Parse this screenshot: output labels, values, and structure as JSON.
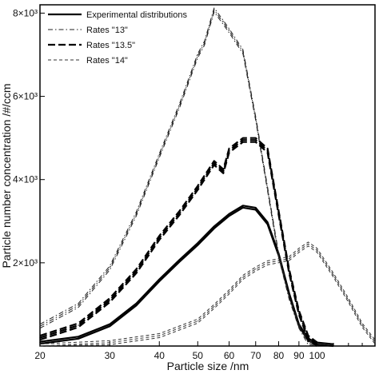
{
  "chart_data": {
    "type": "line",
    "title": "",
    "xlabel": "Particle size /nm",
    "ylabel": "Particle number concentration /#/ccm",
    "x_scale": "log",
    "xlim": [
      20,
      140
    ],
    "ylim": [
      0,
      8200
    ],
    "x_ticks": [
      {
        "value": 20,
        "label": "20"
      },
      {
        "value": 30,
        "label": "30"
      },
      {
        "value": 40,
        "label": "40"
      },
      {
        "value": 50,
        "label": "50"
      },
      {
        "value": 60,
        "label": "60"
      },
      {
        "value": 70,
        "label": "70"
      },
      {
        "value": 80,
        "label": "80"
      },
      {
        "value": 90,
        "label": "90"
      },
      {
        "value": 100,
        "label": "100"
      }
    ],
    "y_ticks": [
      {
        "value": 2000,
        "label": "2×10³"
      },
      {
        "value": 4000,
        "label": "4×10³"
      },
      {
        "value": 6000,
        "label": "6×10³"
      },
      {
        "value": 8000,
        "label": "8×10³"
      }
    ],
    "grid": false,
    "legend_position": "top-left",
    "series": [
      {
        "name": "Experimental distributions",
        "style": "solid",
        "color": "#000000",
        "width": 2.2,
        "x": [
          20,
          25,
          30,
          35,
          40,
          45,
          50,
          55,
          60,
          65,
          70,
          75,
          80,
          85,
          90,
          95,
          100,
          110
        ],
        "y": [
          80,
          200,
          500,
          1000,
          1580,
          2050,
          2450,
          2850,
          3150,
          3350,
          3300,
          2950,
          2200,
          1250,
          500,
          150,
          60,
          20
        ]
      },
      {
        "name": "Rates \"13\"",
        "style": "dashdot",
        "color": "#222222",
        "width": 1.0,
        "x": [
          20,
          25,
          30,
          35,
          40,
          45,
          50,
          52,
          55,
          58,
          60,
          65,
          70,
          75,
          80,
          85,
          90,
          95,
          100
        ],
        "y": [
          500,
          1000,
          1900,
          3200,
          4600,
          5800,
          7000,
          7300,
          8100,
          7800,
          7600,
          7100,
          5500,
          3800,
          2200,
          1200,
          500,
          100,
          20
        ]
      },
      {
        "name": "Rates \"13.5\"",
        "style": "dashed",
        "color": "#000000",
        "width": 2.2,
        "x": [
          20,
          25,
          30,
          35,
          40,
          45,
          50,
          55,
          58,
          60,
          65,
          70,
          75,
          80,
          85,
          90,
          95,
          100
        ],
        "y": [
          200,
          500,
          1100,
          1800,
          2600,
          3200,
          3800,
          4400,
          4200,
          4700,
          4950,
          4950,
          4700,
          3200,
          1800,
          800,
          200,
          40
        ]
      },
      {
        "name": "Rates \"14\"",
        "style": "shortdash",
        "color": "#333333",
        "width": 1.0,
        "x": [
          20,
          30,
          40,
          50,
          55,
          60,
          65,
          70,
          75,
          80,
          85,
          90,
          95,
          100,
          110,
          120,
          130,
          140
        ],
        "y": [
          0,
          80,
          250,
          600,
          950,
          1300,
          1650,
          1850,
          2000,
          2050,
          2100,
          2300,
          2450,
          2300,
          1700,
          1100,
          500,
          100
        ]
      }
    ]
  }
}
